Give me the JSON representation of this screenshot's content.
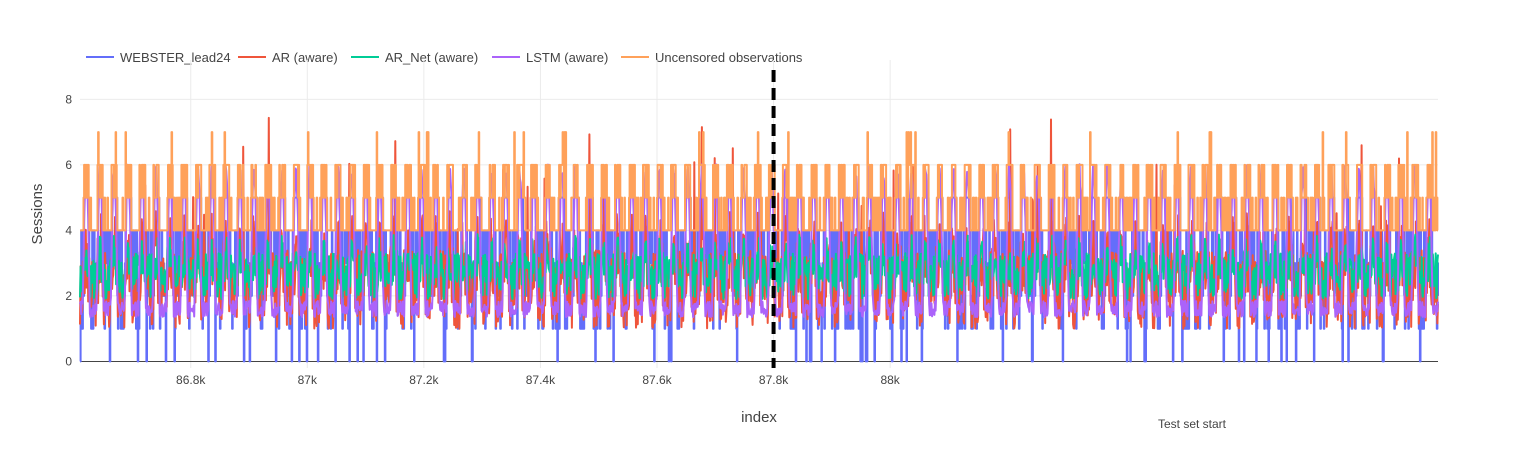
{
  "chart_data": {
    "type": "line",
    "xlabel": "index",
    "ylabel": "Sessions",
    "xlim": [
      86610,
      88940
    ],
    "ylim": [
      -0.2,
      9.2
    ],
    "x_ticks": [
      86800,
      87000,
      87200,
      87400,
      87600,
      87800,
      88000
    ],
    "x_tick_labels": [
      "86.8k",
      "87k",
      "87.2k",
      "87.4k",
      "87.6k",
      "87.8k",
      "88k"
    ],
    "y_ticks": [
      0,
      2,
      4,
      6,
      8
    ],
    "y_tick_labels": [
      "0",
      "2",
      "4",
      "6",
      "8"
    ],
    "grid": true,
    "legend_position": "top-left, horizontal",
    "series": [
      {
        "name": "WEBSTER_lead24",
        "color": "#636efa"
      },
      {
        "name": "AR (aware)",
        "color": "#ef553b"
      },
      {
        "name": "AR_Net (aware)",
        "color": "#00cc96"
      },
      {
        "name": "LSTM (aware)",
        "color": "#ab63fa"
      },
      {
        "name": "Uncensored observations",
        "color": "#ffa15a"
      }
    ],
    "shape": {
      "type": "vertical-dashed-line",
      "x": 87800,
      "color": "#000000"
    },
    "annotation": {
      "text": "Test set start",
      "x": 87800
    },
    "period": 24,
    "x_start": 86610,
    "x_end": 88940
  }
}
